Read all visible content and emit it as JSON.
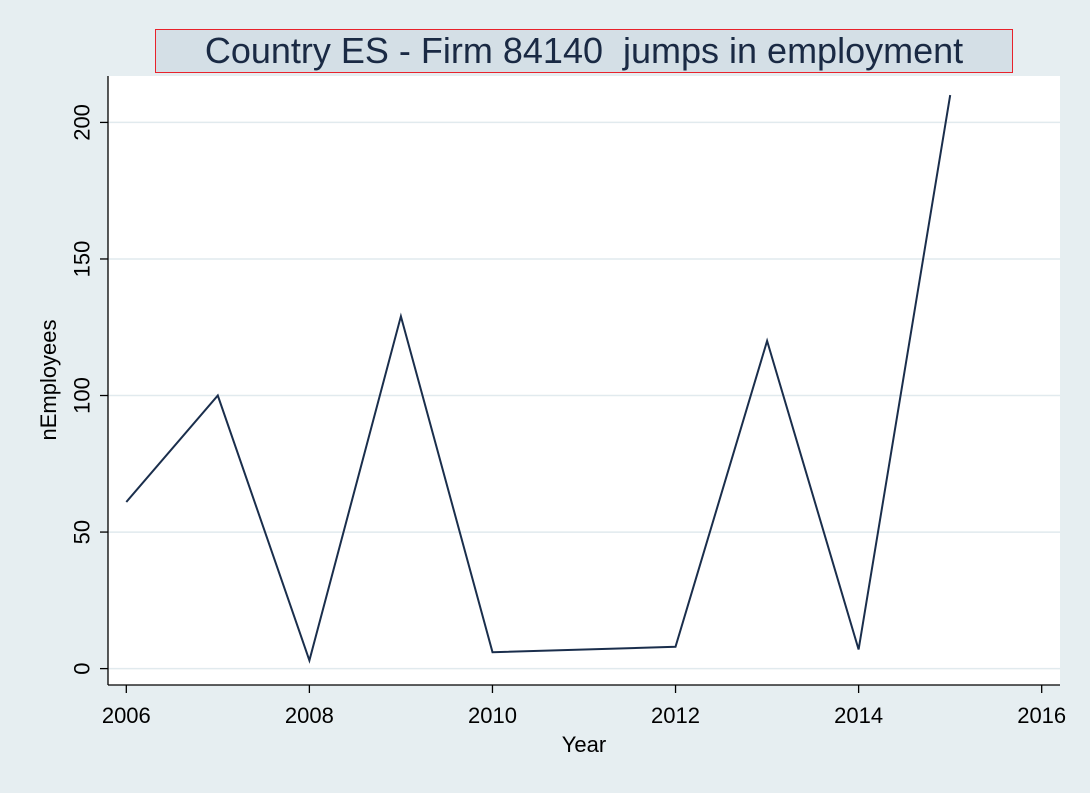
{
  "chart_data": {
    "type": "line",
    "title": "Country ES - Firm 84140  jumps in employment",
    "xlabel": "Year",
    "ylabel": "nEmployees",
    "xlim": [
      2005.8,
      2016.2
    ],
    "ylim": [
      -6,
      217
    ],
    "xticks": [
      2006,
      2008,
      2010,
      2012,
      2014,
      2016
    ],
    "yticks": [
      0,
      50,
      100,
      150,
      200
    ],
    "grid": true,
    "legend": "none",
    "series": [
      {
        "color": "#1a2e4c",
        "points": [
          {
            "x": 2006,
            "y": 61
          },
          {
            "x": 2007,
            "y": 100
          },
          {
            "x": 2008,
            "y": 3
          },
          {
            "x": 2009,
            "y": 129
          },
          {
            "x": 2010,
            "y": 6
          },
          {
            "x": 2012,
            "y": 8
          },
          {
            "x": 2013,
            "y": 120
          },
          {
            "x": 2014,
            "y": 7
          },
          {
            "x": 2015,
            "y": 210
          }
        ]
      }
    ]
  }
}
